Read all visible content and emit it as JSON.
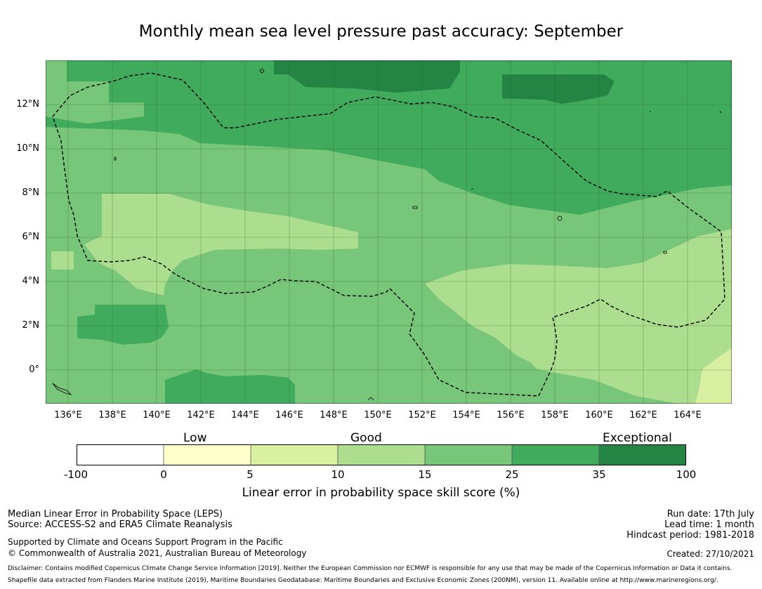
{
  "title": "Monthly mean sea level pressure past accuracy: September",
  "map": {
    "lon_ticks": [
      "136°E",
      "138°E",
      "140°E",
      "142°E",
      "144°E",
      "146°E",
      "148°E",
      "150°E",
      "152°E",
      "154°E",
      "156°E",
      "158°E",
      "160°E",
      "162°E",
      "164°E"
    ],
    "lat_ticks": [
      "12°N",
      "10°N",
      "8°N",
      "6°N",
      "4°N",
      "2°N",
      "0°"
    ],
    "lon_range": [
      134.9,
      165.9
    ],
    "lat_range": [
      -1.5,
      14.0
    ],
    "boundary": "dashed EEZ outline",
    "colors": {
      "c0_5": "#ffffcc",
      "c5_10": "#d9f0a3",
      "c10_15": "#addd8e",
      "c15_25": "#78c679",
      "c25_35": "#41ab5d",
      "c35_100": "#238443",
      "land": "#ffffff",
      "coast": "#000000"
    }
  },
  "colorbar": {
    "groups": [
      "Low",
      "Good",
      "Exceptional"
    ],
    "ticks": [
      "-100",
      "0",
      "5",
      "10",
      "15",
      "25",
      "35",
      "100"
    ],
    "colors": [
      "#ffffff",
      "#ffffcc",
      "#d9f0a3",
      "#addd8e",
      "#78c679",
      "#41ab5d",
      "#238443"
    ],
    "label": "Linear error in probability space skill score (%)"
  },
  "footer": {
    "leps": "Median Linear Error in Probability Space (LEPS)",
    "source": "Source: ACCESS-S2 and ERA5 Climate Reanalysis",
    "supported": "Supported by Climate and Oceans Support Program in the Pacific",
    "copyright": "© Commonwealth of Australia 2021, Australian Bureau of Meteorology",
    "run_date": "Run date: 17th July",
    "lead_time": "Lead time: 1 month",
    "hindcast": "Hindcast period: 1981-2018",
    "created": "Created: 27/10/2021",
    "disclaimer": "Disclaimer: Contains modified Copernicus Climate Change Service Information [2019]. Neither the European Commission nor ECMWF is responsible for any use that may be made of the Copernicus Information or Data it contains.",
    "shapefile": "Shapefile data extracted from Flanders Marine Institute (2019), Maritime Boundaries Geodatabase: Maritime Boundaries and Exclusive Economic Zones (200NM), version 11. Available online at http://www.marineregions.org/."
  }
}
